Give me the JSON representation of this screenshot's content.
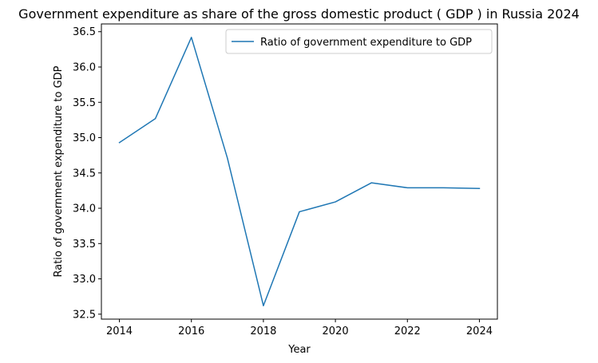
{
  "chart_data": {
    "type": "line",
    "title": "Government expenditure as share of the gross domestic product ( GDP ) in Russia 2024",
    "xlabel": "Year",
    "ylabel": "Ratio of government expenditure to GDP",
    "x": [
      2014,
      2015,
      2016,
      2017,
      2018,
      2019,
      2020,
      2021,
      2022,
      2023,
      2024
    ],
    "series": [
      {
        "name": "Ratio of government expenditure to GDP",
        "values": [
          34.93,
          35.27,
          36.42,
          34.71,
          32.62,
          33.95,
          34.09,
          34.36,
          34.29,
          34.29,
          34.28
        ],
        "color": "#1f77b4"
      }
    ],
    "xticks": [
      2014,
      2016,
      2018,
      2020,
      2022,
      2024
    ],
    "yticks": [
      32.5,
      33.0,
      33.5,
      34.0,
      34.5,
      35.0,
      35.5,
      36.0,
      36.5
    ],
    "ytick_labels": [
      "32.5",
      "33.0",
      "33.5",
      "34.0",
      "34.5",
      "35.0",
      "35.5",
      "36.0",
      "36.5"
    ],
    "xlim": [
      2013.5,
      2024.5
    ],
    "ylim": [
      32.43,
      36.61
    ],
    "grid": false,
    "legend_position": "top-right"
  }
}
